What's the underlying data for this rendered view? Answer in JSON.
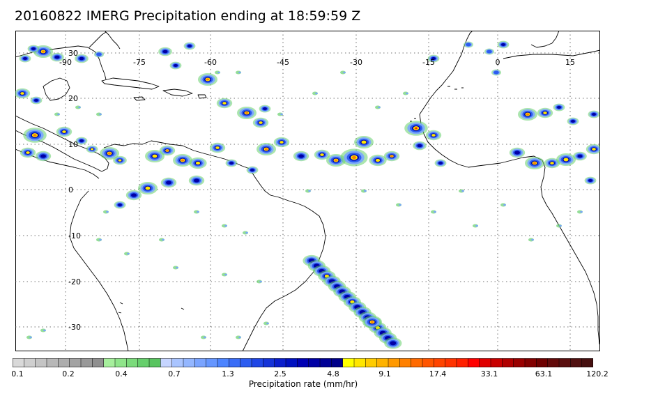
{
  "title": "20160822 IMERG Precipitation ending at 18:59:59 Z",
  "map": {
    "longitude_labels": [
      "-90",
      "-75",
      "-60",
      "-45",
      "-30",
      "-15",
      "0",
      "15"
    ],
    "latitude_labels": [
      "30",
      "20",
      "10",
      "0",
      "-10",
      "-20",
      "-30"
    ]
  },
  "colorbar": {
    "label": "Precipitation rate (mm/hr)",
    "tick_labels": [
      "0.1",
      "0.2",
      "0.4",
      "0.7",
      "1.3",
      "2.5",
      "4.8",
      "9.1",
      "17.4",
      "33.1",
      "63.1",
      "120.2"
    ],
    "colors": [
      "#d9d9d9",
      "#cfcfcf",
      "#c4c4c4",
      "#b8b8b8",
      "#adadad",
      "#a3a3a3",
      "#999999",
      "#8f8f8f",
      "#a6ef9c",
      "#8fe58a",
      "#7bdb7b",
      "#66cf6c",
      "#58c45f",
      "#c6d5ff",
      "#a9c4ff",
      "#93b6ff",
      "#7aa4ff",
      "#6596ff",
      "#4c84ff",
      "#3a6df7",
      "#2c5cf0",
      "#1f46e6",
      "#1533d8",
      "#0a1ecc",
      "#0010c0",
      "#0000b4",
      "#0000a5",
      "#000096",
      "#00008a",
      "#ffff00",
      "#ffe600",
      "#ffcc00",
      "#ffb300",
      "#ff9900",
      "#ff8000",
      "#ff6a00",
      "#ff5500",
      "#ff4400",
      "#ff3300",
      "#ff2000",
      "#ff0000",
      "#e00000",
      "#c80000",
      "#b00000",
      "#990000",
      "#820000",
      "#6e0000",
      "#620a0a",
      "#5a0f0f",
      "#501010",
      "#461010"
    ]
  }
}
